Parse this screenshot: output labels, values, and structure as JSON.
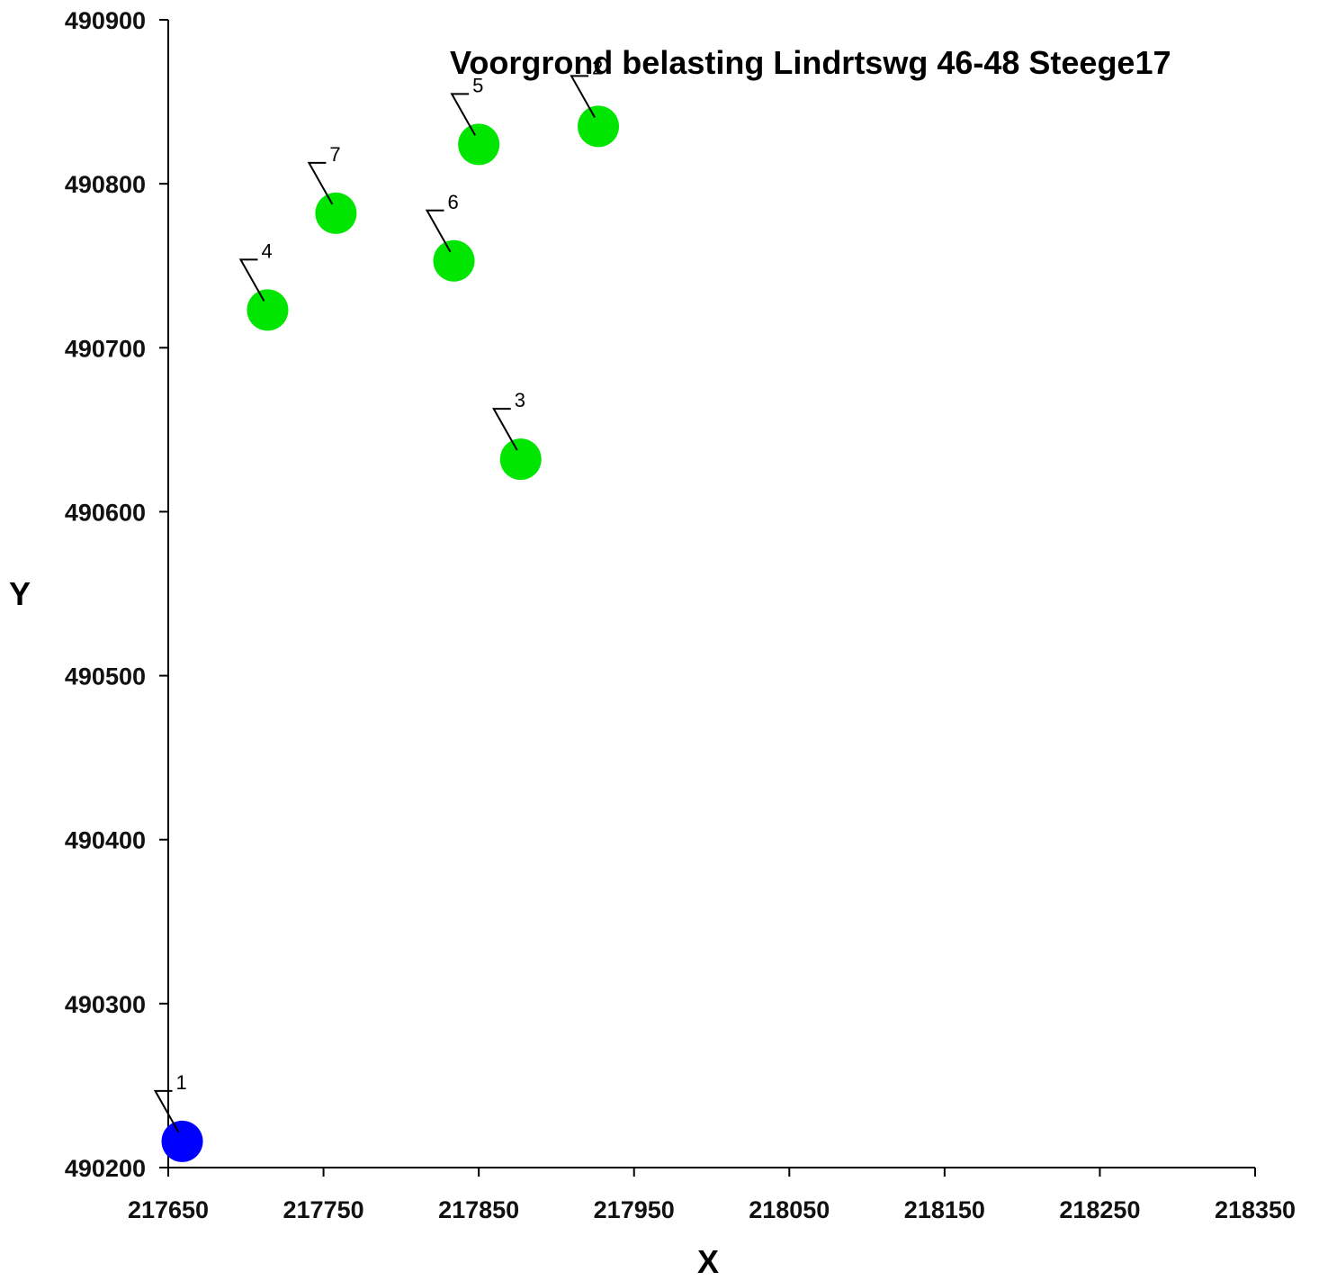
{
  "chart_data": {
    "type": "scatter",
    "title": "Voorgrond belasting Lindrtswg 46-48 Steege17",
    "x_label": "X",
    "y_label": "Y",
    "x": [
      217659,
      217927,
      217877,
      217714,
      217850,
      217834,
      217758
    ],
    "y": [
      490216,
      490835,
      490632,
      490723,
      490824,
      490753,
      490782
    ],
    "labels": [
      "1",
      "2",
      "3",
      "4",
      "5",
      "6",
      "7"
    ],
    "colors": [
      "#0000ff",
      "#00e600",
      "#00e600",
      "#00e600",
      "#00e600",
      "#00e600",
      "#00e600"
    ],
    "xlim": [
      217650,
      218350
    ],
    "xticks": [
      217650,
      217750,
      217850,
      217950,
      218050,
      218150,
      218250,
      218350
    ],
    "ylim": [
      490200,
      490900
    ],
    "yticks": [
      490200,
      490300,
      490400,
      490500,
      490600,
      490700,
      490800,
      490900
    ],
    "grid": false
  }
}
